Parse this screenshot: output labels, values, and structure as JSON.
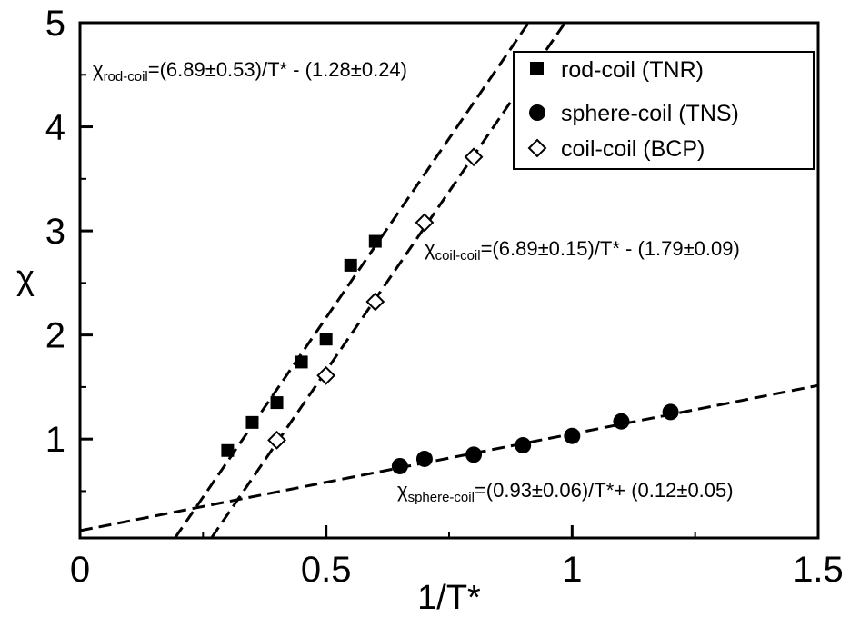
{
  "chart_data": {
    "type": "scatter",
    "xlabel": "1/T*",
    "ylabel": "χ",
    "xlim": [
      0,
      1.5
    ],
    "ylim": [
      0.05,
      5
    ],
    "x_ticks": [
      0,
      0.5,
      1,
      1.5
    ],
    "x_tick_labels": [
      "0",
      "0.5",
      "1",
      "1.5"
    ],
    "y_ticks": [
      1,
      2,
      3,
      4,
      5
    ],
    "y_tick_labels": [
      "1",
      "2",
      "3",
      "4",
      "5"
    ],
    "grid": false,
    "legend_position": "top-right",
    "series": [
      {
        "name": "rod-coil (TNR)",
        "marker": "filled-square",
        "x": [
          0.3,
          0.35,
          0.4,
          0.45,
          0.5,
          0.55,
          0.6
        ],
        "y": [
          0.89,
          1.16,
          1.35,
          1.74,
          1.96,
          2.67,
          2.9
        ]
      },
      {
        "name": "sphere-coil (TNS)",
        "marker": "filled-circle",
        "x": [
          0.65,
          0.7,
          0.8,
          0.9,
          1.0,
          1.1,
          1.2
        ],
        "y": [
          0.74,
          0.81,
          0.85,
          0.94,
          1.03,
          1.17,
          1.26
        ]
      },
      {
        "name": "coil-coil (BCP)",
        "marker": "open-diamond",
        "x": [
          0.4,
          0.5,
          0.6,
          0.7,
          0.8
        ],
        "y": [
          0.99,
          1.61,
          2.32,
          3.08,
          3.71
        ]
      }
    ],
    "fit_lines": [
      {
        "slope": 6.89,
        "intercept": -1.28
      },
      {
        "slope": 6.89,
        "intercept": -1.79
      },
      {
        "slope": 0.93,
        "intercept": 0.12
      }
    ],
    "annotations": [
      {
        "chi": "χ",
        "sub": "rod-coil",
        "rest": "=(6.89±0.53)/T* - (1.28±0.24)"
      },
      {
        "chi": "χ",
        "sub": "coil-coil",
        "rest": "=(6.89±0.15)/T* - (1.79±0.09)"
      },
      {
        "chi": "χ",
        "sub": "sphere-coil",
        "rest": "=(0.93±0.06)/T*+ (0.12±0.05)"
      }
    ]
  }
}
